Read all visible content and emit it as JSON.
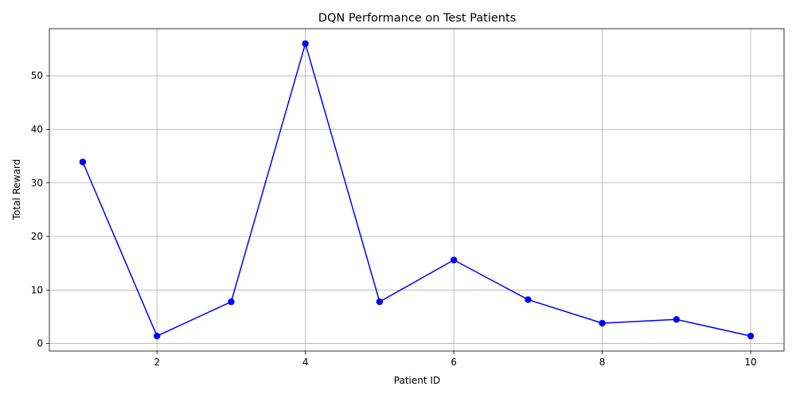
{
  "chart_data": {
    "type": "line",
    "title": "DQN Performance on Test Patients",
    "xlabel": "Patient ID",
    "ylabel": "Total Reward",
    "x": [
      1,
      2,
      3,
      4,
      5,
      6,
      7,
      8,
      9,
      10
    ],
    "series": [
      {
        "values": [
          33.9,
          1.4,
          7.8,
          56.0,
          7.8,
          15.6,
          8.2,
          3.8,
          4.5,
          1.4
        ],
        "color": "#0000ff",
        "marker": "circle"
      }
    ],
    "xlim": [
      0.55,
      10.45
    ],
    "ylim": [
      -1.4,
      58.8
    ],
    "xticks": [
      2,
      4,
      6,
      8,
      10
    ],
    "yticks": [
      0,
      10,
      20,
      30,
      40,
      50
    ],
    "grid": true
  }
}
